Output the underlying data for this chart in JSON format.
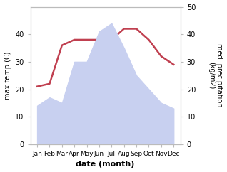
{
  "months": [
    "Jan",
    "Feb",
    "Mar",
    "Apr",
    "May",
    "Jun",
    "Jul",
    "Aug",
    "Sep",
    "Oct",
    "Nov",
    "Dec"
  ],
  "precipitation": [
    14,
    17,
    15,
    30,
    30,
    41,
    44,
    35,
    25,
    20,
    15,
    13
  ],
  "temperature": [
    21,
    22,
    36,
    38,
    38,
    38,
    38,
    42,
    42,
    38,
    32,
    29
  ],
  "precip_fill": "#c8d0f0",
  "precip_edge": "#aab8d8",
  "temp_color": "#c04050",
  "ylabel_left": "max temp (C)",
  "ylabel_right": "med. precipitation\n(kg/m2)",
  "xlabel": "date (month)",
  "ylim_left": [
    0,
    50
  ],
  "ylim_right": [
    0,
    50
  ],
  "yticks_left": [
    0,
    10,
    20,
    30,
    40
  ],
  "yticks_right": [
    0,
    10,
    20,
    30,
    40,
    50
  ],
  "background_color": "#ffffff",
  "spine_color": "#bbbbbb",
  "temp_linewidth": 1.8,
  "figsize": [
    3.18,
    2.42
  ],
  "dpi": 100
}
